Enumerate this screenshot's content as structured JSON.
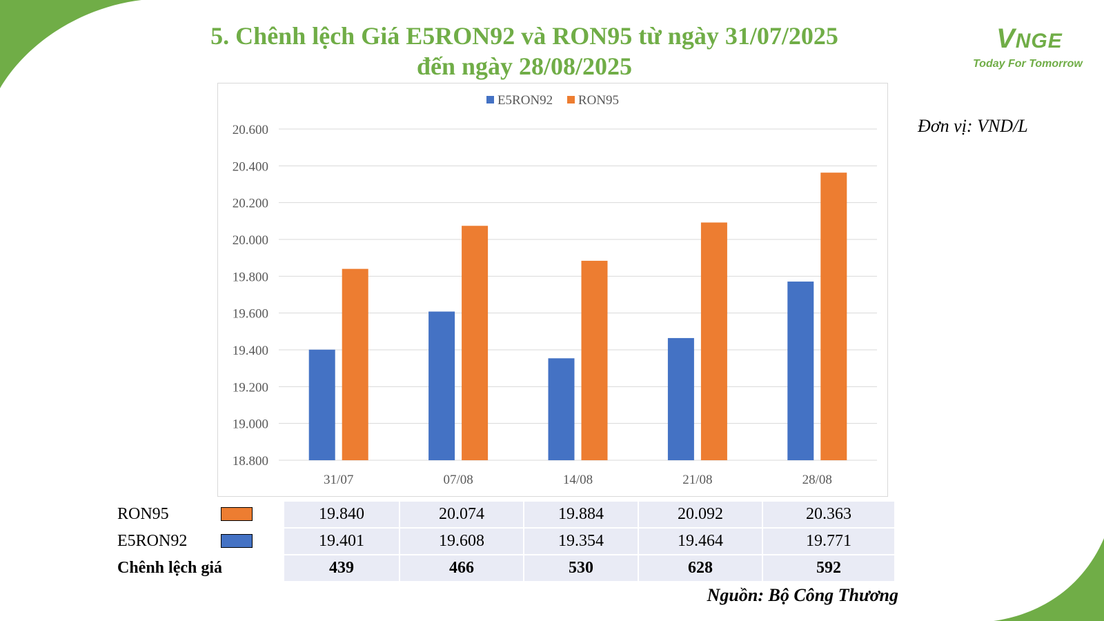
{
  "title_line1": "5. Chênh lệch Giá E5RON92 và RON95 từ ngày 31/07/2025",
  "title_line2": "đến ngày 28/08/2025",
  "logo": {
    "mark_letter": "V",
    "mark_rest": "NGE",
    "tagline": "Today For Tomorrow"
  },
  "unit_label": "Đơn vị: VND/L",
  "source": "Nguồn: Bộ Công Thương",
  "colors": {
    "e5ron92": "#4472c4",
    "ron95": "#ed7d31",
    "accent_green": "#70ad47",
    "table_fill": "#e9ebf5"
  },
  "chart_data": {
    "type": "bar",
    "categories": [
      "31/07",
      "07/08",
      "14/08",
      "21/08",
      "28/08"
    ],
    "series": [
      {
        "name": "E5RON92",
        "values": [
          19401,
          19608,
          19354,
          19464,
          19771
        ]
      },
      {
        "name": "RON95",
        "values": [
          19840,
          20074,
          19884,
          20092,
          20363
        ]
      }
    ],
    "ylim": [
      18800,
      20600
    ],
    "yticks": [
      18800,
      19000,
      19200,
      19400,
      19600,
      19800,
      20000,
      20200,
      20400,
      20600
    ],
    "ytick_labels": [
      "18.800",
      "19.000",
      "19.200",
      "19.400",
      "19.600",
      "19.800",
      "20.000",
      "20.200",
      "20.400",
      "20.600"
    ],
    "grid": true,
    "legend_position": "top"
  },
  "table": {
    "rows": [
      {
        "label": "RON95",
        "values": [
          "19.840",
          "20.074",
          "19.884",
          "20.092",
          "20.363"
        ]
      },
      {
        "label": "E5RON92",
        "values": [
          "19.401",
          "19.608",
          "19.354",
          "19.464",
          "19.771"
        ]
      },
      {
        "label": "Chênh lệch giá",
        "values": [
          "439",
          "466",
          "530",
          "628",
          "592"
        ]
      }
    ]
  }
}
